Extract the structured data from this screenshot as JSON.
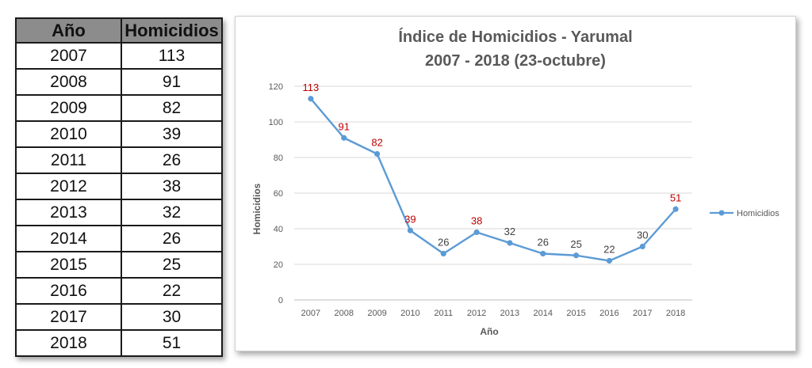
{
  "table": {
    "headers": {
      "year": "Año",
      "value": "Homicidios"
    },
    "rows": [
      {
        "year": "2007",
        "value": "113"
      },
      {
        "year": "2008",
        "value": "91"
      },
      {
        "year": "2009",
        "value": "82"
      },
      {
        "year": "2010",
        "value": "39"
      },
      {
        "year": "2011",
        "value": "26"
      },
      {
        "year": "2012",
        "value": "38"
      },
      {
        "year": "2013",
        "value": "32"
      },
      {
        "year": "2014",
        "value": "26"
      },
      {
        "year": "2015",
        "value": "25"
      },
      {
        "year": "2016",
        "value": "22"
      },
      {
        "year": "2017",
        "value": "30"
      },
      {
        "year": "2018",
        "value": "51"
      }
    ]
  },
  "chart_data": {
    "type": "line",
    "title": "Índice de Homicidios - Yarumal",
    "subtitle": "2007 - 2018 (23-octubre)",
    "xlabel": "Año",
    "ylabel": "Homicidios",
    "categories": [
      "2007",
      "2008",
      "2009",
      "2010",
      "2011",
      "2012",
      "2013",
      "2014",
      "2015",
      "2016",
      "2017",
      "2018"
    ],
    "series": [
      {
        "name": "Homicidios",
        "values": [
          113,
          91,
          82,
          39,
          26,
          38,
          32,
          26,
          25,
          22,
          30,
          51
        ],
        "color": "#5b9bd5"
      }
    ],
    "ylim": [
      0,
      120
    ],
    "yticks": [
      0,
      20,
      40,
      60,
      80,
      100,
      120
    ],
    "grid": true,
    "legend": "right",
    "label_colors": {
      "highlight": "#c00000",
      "normal": "#404040"
    },
    "highlighted_labels": [
      "2007",
      "2008",
      "2009",
      "2010",
      "2012",
      "2018"
    ]
  }
}
